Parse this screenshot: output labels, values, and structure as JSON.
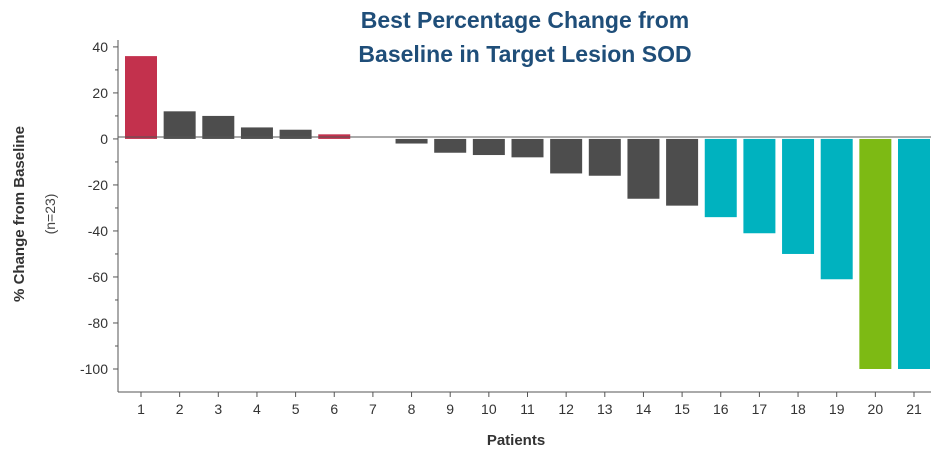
{
  "chart_data": {
    "type": "bar",
    "title": [
      "Best Percentage Change from",
      "Baseline in Target Lesion SOD"
    ],
    "ylabel": "% Change from Baseline",
    "ylabel_sub": "(n=23)",
    "xlabel": "Patients",
    "ylim": [
      -110,
      43
    ],
    "yticks": [
      "40",
      "20",
      "0",
      "-20",
      "-40",
      "-60",
      "-80",
      "-100"
    ],
    "categories": [
      "1",
      "2",
      "3",
      "4",
      "5",
      "6",
      "7",
      "8",
      "9",
      "10",
      "11",
      "12",
      "13",
      "14",
      "15",
      "16",
      "17",
      "18",
      "19",
      "20",
      "21"
    ],
    "values": [
      36,
      12,
      10,
      5,
      4,
      2,
      0,
      -2,
      -6,
      -7,
      -8,
      -15,
      -16,
      -26,
      -29,
      -34,
      -41,
      -50,
      -61,
      -100,
      -100
    ],
    "colors": [
      "#c3314d",
      "#4d4d4d",
      "#4d4d4d",
      "#4d4d4d",
      "#4d4d4d",
      "#c3314d",
      "#4d4d4d",
      "#4d4d4d",
      "#4d4d4d",
      "#4d4d4d",
      "#4d4d4d",
      "#4d4d4d",
      "#4d4d4d",
      "#4d4d4d",
      "#4d4d4d",
      "#00b2bf",
      "#00b2bf",
      "#00b2bf",
      "#00b2bf",
      "#7dba14",
      "#00b2bf"
    ],
    "grid": false,
    "legend": "none"
  }
}
